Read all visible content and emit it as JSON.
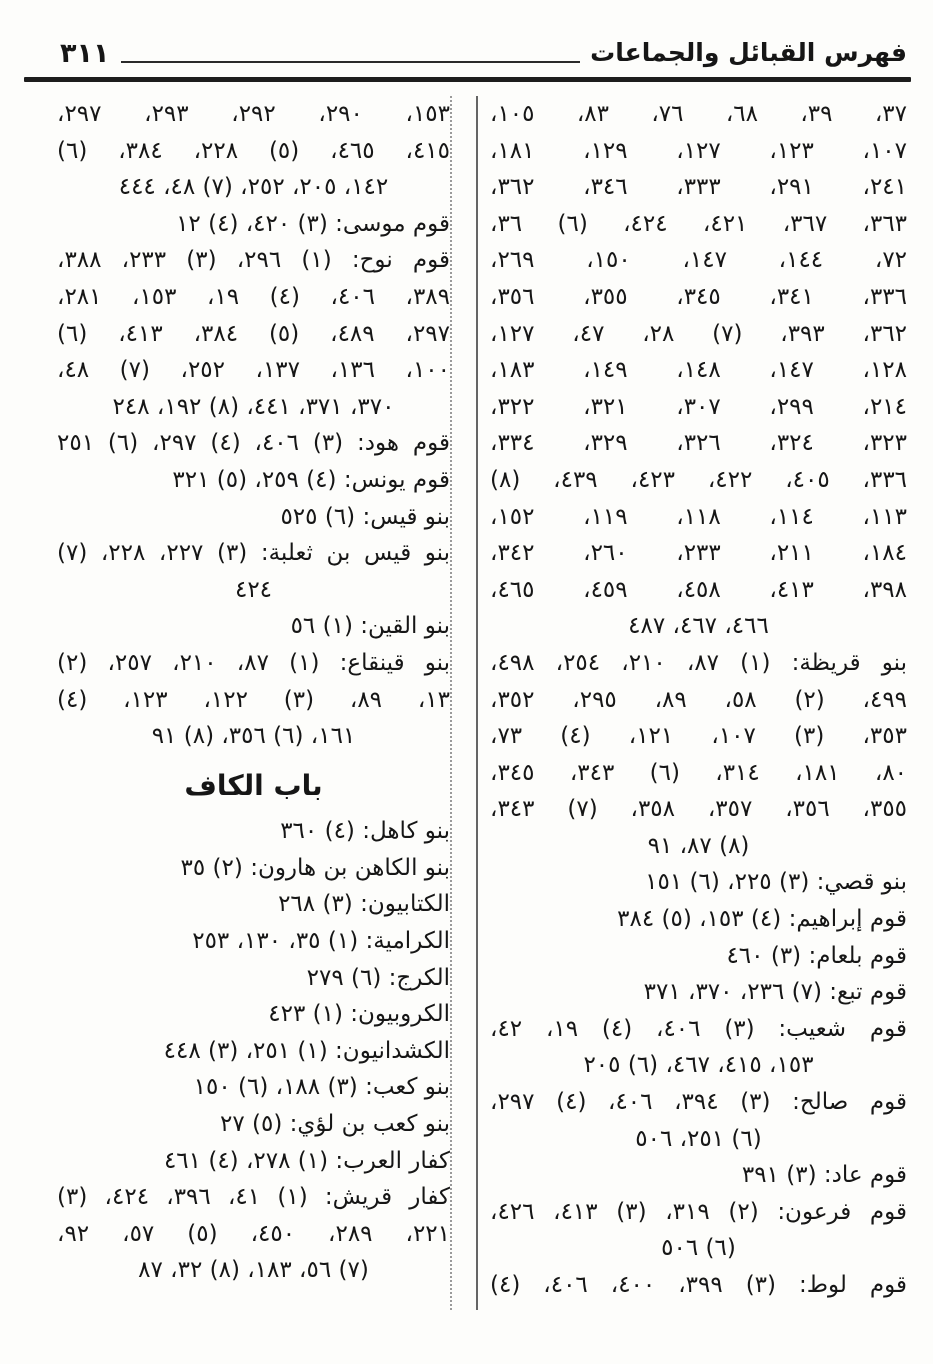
{
  "header": {
    "page_number": "٣١١",
    "title": "فهرس القبائل والجماعات"
  },
  "right_column": {
    "lines": [
      {
        "text": "٣٧، ٣٩، ٦٨، ٧٦، ٨٣، ١٠٥،",
        "align": "justify"
      },
      {
        "text": "١٠٧، ١٢٣، ١٢٧، ١٢٩، ١٨١،",
        "align": "justify"
      },
      {
        "text": "٢٤١، ٢٩١، ٣٣٣، ٣٤٦، ٣٦٢،",
        "align": "justify"
      },
      {
        "text": "٣٦٣، ٣٦٧، ٤٢١، ٤٢٤، (٦) ٣٦،",
        "align": "justify"
      },
      {
        "text": "٧٢، ١٤٤، ١٤٧، ١٥٠، ٢٦٩،",
        "align": "justify"
      },
      {
        "text": "٣٣٦، ٣٤١، ٣٤٥، ٣٥٥، ٣٥٦،",
        "align": "justify"
      },
      {
        "text": "٣٦٢، ٣٩٣، (٧) ٢٨، ٤٧، ١٢٧،",
        "align": "justify"
      },
      {
        "text": "١٢٨، ١٤٧، ١٤٨، ١٤٩، ١٨٣،",
        "align": "justify"
      },
      {
        "text": "٢١٤، ٢٩٩، ٣٠٧، ٣٢١، ٣٢٢،",
        "align": "justify"
      },
      {
        "text": "٣٢٣، ٣٢٤، ٣٢٦، ٣٢٩، ٣٣٤،",
        "align": "justify"
      },
      {
        "text": "٣٣٦، ٤٠٥، ٤٢٢، ٤٢٣، ٤٣٩، (٨)",
        "align": "justify"
      },
      {
        "text": "١١٣، ١١٤، ١١٨، ١١٩، ١٥٢،",
        "align": "justify"
      },
      {
        "text": "١٨٤، ٢١١، ٢٣٣، ٢٦٠، ٣٤٢،",
        "align": "justify"
      },
      {
        "text": "٣٩٨، ٤١٣، ٤٥٨، ٤٥٩، ٤٦٥،",
        "align": "justify"
      },
      {
        "text": "٤٦٦، ٤٦٧، ٤٨٧",
        "align": "center"
      },
      {
        "text": "بنو قريظة: (١) ٨٧، ٢١٠، ٢٥٤، ٤٩٨،",
        "align": "justify"
      },
      {
        "text": "٤٩٩، (٢) ٥٨، ٨٩، ٢٩٥، ٣٥٢،",
        "align": "justify"
      },
      {
        "text": "٣٥٣، (٣) ١٠٧، ١٢١، (٤) ٧٣،",
        "align": "justify"
      },
      {
        "text": "٨٠، ١٨١، ٣١٤، (٦) ٣٤٣، ٣٤٥،",
        "align": "justify"
      },
      {
        "text": "٣٥٥، ٣٥٦، ٣٥٧، ٣٥٨، (٧) ٣٤٣،",
        "align": "justify"
      },
      {
        "text": "(٨) ٨٧، ٩١",
        "align": "center"
      },
      {
        "text": "بنو قصي: (٣) ٢٢٥، (٦) ١٥١",
        "align": "right"
      },
      {
        "text": "قوم إبراهيم: (٤) ١٥٣، (٥) ٣٨٤",
        "align": "right"
      },
      {
        "text": "قوم بلعام: (٣) ٤٦٠",
        "align": "right"
      },
      {
        "text": "قوم تبع: (٧) ٢٣٦، ٣٧٠، ٣٧١",
        "align": "right"
      },
      {
        "text": "قوم شعيب: (٣) ٤٠٦، (٤) ١٩، ٤٢،",
        "align": "justify"
      },
      {
        "text": "١٥٣، ٤١٥، ٤٦٧، (٦) ٢٠٥",
        "align": "center"
      },
      {
        "text": "قوم صالح: (٣) ٣٩٤، ٤٠٦، (٤) ٢٩٧،",
        "align": "justify"
      },
      {
        "text": "(٦) ٢٥١، ٥٠٦",
        "align": "center"
      },
      {
        "text": "قوم عاد: (٣) ٣٩١",
        "align": "right"
      },
      {
        "text": "قوم فرعون: (٢) ٣١٩، (٣) ٤١٣، ٤٢٦،",
        "align": "justify"
      },
      {
        "text": "(٦) ٥٠٦",
        "align": "center"
      },
      {
        "text": "قوم لوط: (٣) ٣٩٩، ٤٠٠، ٤٠٦، (٤)",
        "align": "justify"
      }
    ]
  },
  "left_column": {
    "lines": [
      {
        "text": "١٥٣، ٢٩٠، ٢٩٢، ٢٩٣، ٢٩٧،",
        "align": "justify"
      },
      {
        "text": "٤١٥، ٤٦٥، (٥) ٢٢٨، ٣٨٤، (٦)",
        "align": "justify"
      },
      {
        "text": "١٤٢، ٢٠٥، ٢٥٢، (٧) ٤٨، ٤٤٤",
        "align": "center"
      },
      {
        "text": "قوم موسى: (٣) ٤٢٠، (٤) ١٢",
        "align": "right"
      },
      {
        "text": "قوم نوح: (١) ٢٩٦، (٣) ٢٣٣، ٣٨٨،",
        "align": "justify"
      },
      {
        "text": "٣٨٩، ٤٠٦، (٤) ١٩، ١٥٣، ٢٨١،",
        "align": "justify"
      },
      {
        "text": "٢٩٧، ٤٨٩، (٥) ٣٨٤، ٤١٣، (٦)",
        "align": "justify"
      },
      {
        "text": "١٠٠، ١٣٦، ١٣٧، ٢٥٢، (٧) ٤٨،",
        "align": "justify"
      },
      {
        "text": "٣٧٠، ٣٧١، ٤٤١، (٨) ١٩٢، ٢٤٨",
        "align": "center"
      },
      {
        "text": "قوم هود: (٣) ٤٠٦، (٤) ٢٩٧، (٦) ٢٥١",
        "align": "justify"
      },
      {
        "text": "قوم يونس: (٤) ٢٥٩، (٥) ٣٢١",
        "align": "right"
      },
      {
        "text": "بنو قيس: (٦) ٥٢٥",
        "align": "right"
      },
      {
        "text": "بنو قيس بن ثعلبة: (٣) ٢٢٧، ٢٢٨، (٧)",
        "align": "justify"
      },
      {
        "text": "٤٢٤",
        "align": "center"
      },
      {
        "text": "بنو القين: (١) ٥٦",
        "align": "right"
      },
      {
        "text": "بنو قينقاع: (١) ٨٧، ٢١٠، ٢٥٧، (٢)",
        "align": "justify"
      },
      {
        "text": "١٣، ٨٩، (٣) ١٢٢، ١٢٣، (٤)",
        "align": "justify"
      },
      {
        "text": "١٦١، (٦) ٣٥٦، (٨) ٩١",
        "align": "center"
      },
      {
        "text": "باب الكاف",
        "type": "heading"
      },
      {
        "text": "بنو كاهل: (٤) ٣٦٠",
        "align": "right"
      },
      {
        "text": "بنو الكاهن بن هارون: (٢) ٣٥",
        "align": "right"
      },
      {
        "text": "الكتابيون: (٣) ٢٦٨",
        "align": "right"
      },
      {
        "text": "الكرامية: (١) ٣٥، ١٣٠، ٢٥٣",
        "align": "right"
      },
      {
        "text": "الكرج: (٦) ٢٧٩",
        "align": "right"
      },
      {
        "text": "الكروبيون: (١) ٤٢٣",
        "align": "right"
      },
      {
        "text": "الكشدانيون: (١) ٢٥١، (٣) ٤٤٨",
        "align": "right"
      },
      {
        "text": "بنو كعب: (٣) ١٨٨، (٦) ١٥٠",
        "align": "right"
      },
      {
        "text": "بنو كعب بن لؤي: (٥) ٢٧",
        "align": "right"
      },
      {
        "text": "كفار العرب: (١) ٢٧٨، (٤) ٤٦١",
        "align": "right"
      },
      {
        "text": "كفار قريش: (١) ٤١، ٣٩٦، ٤٢٤، (٣)",
        "align": "justify"
      },
      {
        "text": "٢٢١، ٢٨٩، ٤٥٠، (٥) ٥٧، ٩٢،",
        "align": "justify"
      },
      {
        "text": "(٧) ٥٦، ١٨٣، (٨) ٣٢، ٨٧",
        "align": "center"
      }
    ]
  }
}
